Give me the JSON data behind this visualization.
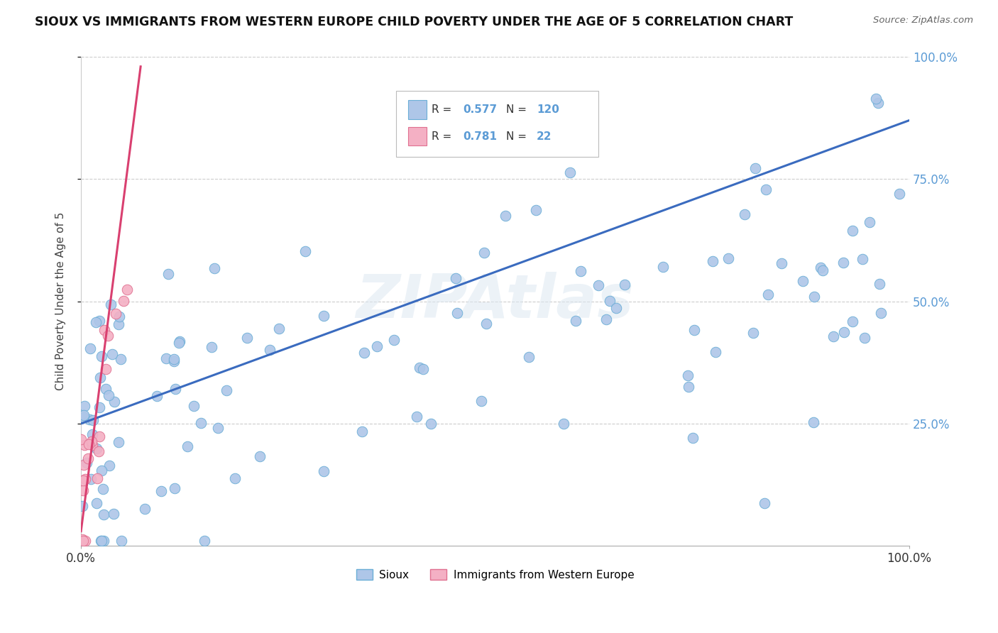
{
  "title": "SIOUX VS IMMIGRANTS FROM WESTERN EUROPE CHILD POVERTY UNDER THE AGE OF 5 CORRELATION CHART",
  "source": "Source: ZipAtlas.com",
  "ylabel": "Child Poverty Under the Age of 5",
  "background_color": "#ffffff",
  "sioux_color": "#aec6e8",
  "sioux_edge": "#6baed6",
  "immigrants_color": "#f4b0c4",
  "immigrants_edge": "#e07090",
  "line_blue": "#3a6bbf",
  "line_pink": "#d94070",
  "blue_R": 0.577,
  "blue_N": 120,
  "pink_R": 0.781,
  "pink_N": 22,
  "ytick_color": "#5b9bd5",
  "xtick_color": "#333333",
  "watermark_text": "ZIPAtlas",
  "legend_label_sioux": "Sioux",
  "legend_label_imm": "Immigrants from Western Europe"
}
